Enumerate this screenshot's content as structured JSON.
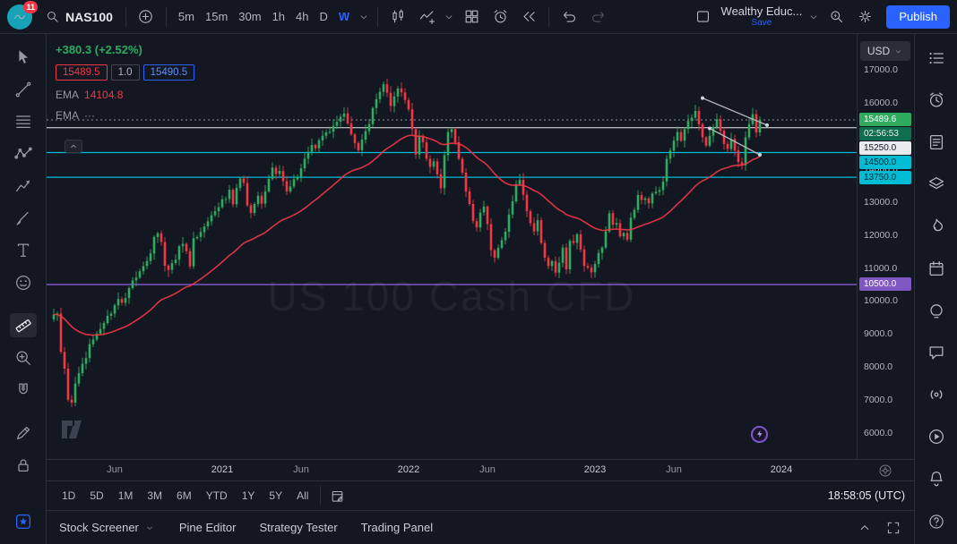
{
  "topbar": {
    "logo_badge": "11",
    "symbol": "NAS100",
    "intervals": [
      "5m",
      "15m",
      "30m",
      "1h",
      "4h",
      "D",
      "W"
    ],
    "active_interval": "W",
    "layout_name": "Wealthy Educ...",
    "save_label": "Save",
    "publish_label": "Publish"
  },
  "legend": {
    "change": "+380.3 (+2.52%)",
    "bid": "15489.5",
    "spread": "1.0",
    "ask": "15490.5",
    "ema1_label": "EMA",
    "ema1_value": "14104.8",
    "ema2_label": "EMA",
    "ema2_value": "···"
  },
  "watermark": "US 100 Cash CFD",
  "price_scale": {
    "currency": "USD",
    "ticks": [
      "17000.0",
      "16000.0",
      "15000.0",
      "14000.0",
      "13000.0",
      "12000.0",
      "11000.0",
      "10000.0",
      "9000.0",
      "8000.0",
      "7000.0",
      "6000.0"
    ],
    "labels": [
      {
        "text": "15489.6",
        "price": 15489.6,
        "type": "last"
      },
      {
        "text": "02:56:53",
        "price": 15489.6,
        "type": "countdown"
      },
      {
        "text": "15250.0",
        "price": 15250,
        "type": "white"
      },
      {
        "text": "14500.0",
        "price": 14500,
        "type": "cyan"
      },
      {
        "text": "13750.0",
        "price": 13750,
        "type": "cyan"
      },
      {
        "text": "10500.0",
        "price": 10500,
        "type": "purple"
      }
    ]
  },
  "time_axis": {
    "ticks": [
      {
        "label": "Jun",
        "week": 17,
        "year": false
      },
      {
        "label": "2021",
        "week": 47,
        "year": true
      },
      {
        "label": "Jun",
        "week": 69,
        "year": false
      },
      {
        "label": "2022",
        "week": 99,
        "year": true
      },
      {
        "label": "Jun",
        "week": 121,
        "year": false
      },
      {
        "label": "2023",
        "week": 151,
        "year": true
      },
      {
        "label": "Jun",
        "week": 173,
        "year": false
      },
      {
        "label": "2024",
        "week": 203,
        "year": true
      }
    ]
  },
  "range_row": {
    "ranges": [
      "1D",
      "5D",
      "1M",
      "3M",
      "6M",
      "YTD",
      "1Y",
      "5Y",
      "All"
    ],
    "clock": "18:58:05 (UTC)"
  },
  "bottom_tabs": [
    "Stock Screener",
    "Pine Editor",
    "Strategy Tester",
    "Trading Panel"
  ],
  "left_toolbar": [
    "cursor",
    "trend-line",
    "fib-retracement",
    "xabcd-pattern",
    "prediction",
    "brush",
    "text",
    "emoji",
    "measure",
    "zoom",
    "magnet",
    "edit",
    "lock",
    "favorites"
  ],
  "left_toolbar_active": "measure",
  "right_toolbar": [
    "watchlist",
    "alerts",
    "news",
    "object-tree",
    "hotlists",
    "calendar",
    "ideas",
    "chat",
    "streams",
    "videos",
    "notifications"
  ],
  "right_toolbar_bottom": "help",
  "colors": {
    "up": "#2eab5e",
    "down": "#f23645",
    "ema": "#f23645",
    "cyan": "#00bcd4",
    "purple": "#7e57c2",
    "white_level": "#e8eaed",
    "accent": "#2962ff",
    "dashed_line": "#8a8f9c",
    "trend_drawing": "#b2b5be"
  },
  "chart_data": {
    "type": "candlestick",
    "symbol": "NAS100",
    "interval": "W",
    "title": "US 100 Cash CFD",
    "ylim": [
      5211,
      18092
    ],
    "ema_period": 40,
    "last_price": 15489.6,
    "closes": [
      9590,
      9620,
      8460,
      7950,
      7010,
      6920,
      7500,
      7810,
      8100,
      8270,
      8690,
      8830,
      9010,
      9150,
      9330,
      9550,
      9620,
      9870,
      10060,
      9950,
      10090,
      10390,
      10620,
      10710,
      10900,
      11060,
      11210,
      11440,
      11940,
      12050,
      11790,
      11070,
      10940,
      11150,
      11250,
      11660,
      11730,
      11510,
      11050,
      11900,
      11940,
      12090,
      12260,
      12410,
      12600,
      12720,
      12840,
      13080,
      13090,
      13370,
      12930,
      13430,
      13710,
      13580,
      12900,
      12670,
      12940,
      13190,
      12950,
      13320,
      13700,
      14040,
      13850,
      13940,
      13630,
      13320,
      13470,
      13690,
      13770,
      14020,
      14310,
      14520,
      14730,
      14630,
      14870,
      15010,
      15110,
      15130,
      15310,
      15430,
      15580,
      15680,
      15380,
      15050,
      14790,
      14570,
      14890,
      15150,
      15360,
      15850,
      16120,
      16340,
      16570,
      16310,
      15910,
      16200,
      16440,
      16320,
      16090,
      15810,
      15210,
      14440,
      15010,
      14810,
      14310,
      14070,
      14230,
      13840,
      13420,
      14420,
      15120,
      15210,
      14810,
      14310,
      13890,
      13320,
      12940,
      12420,
      12230,
      12680,
      12860,
      12330,
      11540,
      11310,
      11610,
      11840,
      12100,
      12620,
      13020,
      13540,
      13670,
      13220,
      12720,
      12360,
      12110,
      12450,
      11760,
      11310,
      11060,
      11210,
      10860,
      11160,
      11620,
      10960,
      11820,
      11760,
      12020,
      11560,
      11060,
      11010,
      10870,
      11120,
      11460,
      11620,
      12110,
      12660,
      12310,
      12360,
      11960,
      12060,
      11860,
      12520,
      12760,
      13210,
      13060,
      13110,
      12960,
      13260,
      13310,
      13360,
      13620,
      14310,
      14560,
      14860,
      15120,
      14860,
      15210,
      15460,
      15560,
      15760,
      15360,
      14960,
      14710,
      15010,
      15260,
      15510,
      15160,
      14760,
      14610,
      14910,
      14560,
      14210,
      14110,
      14960,
      15360,
      15660,
      15110,
      15490
    ],
    "levels": [
      {
        "price": 15250,
        "color": "#e8eaed",
        "width": 1
      },
      {
        "price": 14500,
        "color": "#00bcd4",
        "width": 1.2
      },
      {
        "price": 13750,
        "color": "#00bcd4",
        "width": 1.2
      },
      {
        "price": 10500,
        "color": "#7e57c2",
        "width": 1.5
      }
    ],
    "trend_lines": [
      {
        "w1": 181,
        "p1": 16150,
        "w2": 199,
        "p2": 15330
      },
      {
        "w1": 183,
        "p1": 15230,
        "w2": 197,
        "p2": 14430
      }
    ],
    "idea_marker": {
      "week": 197,
      "price": 5950
    }
  }
}
